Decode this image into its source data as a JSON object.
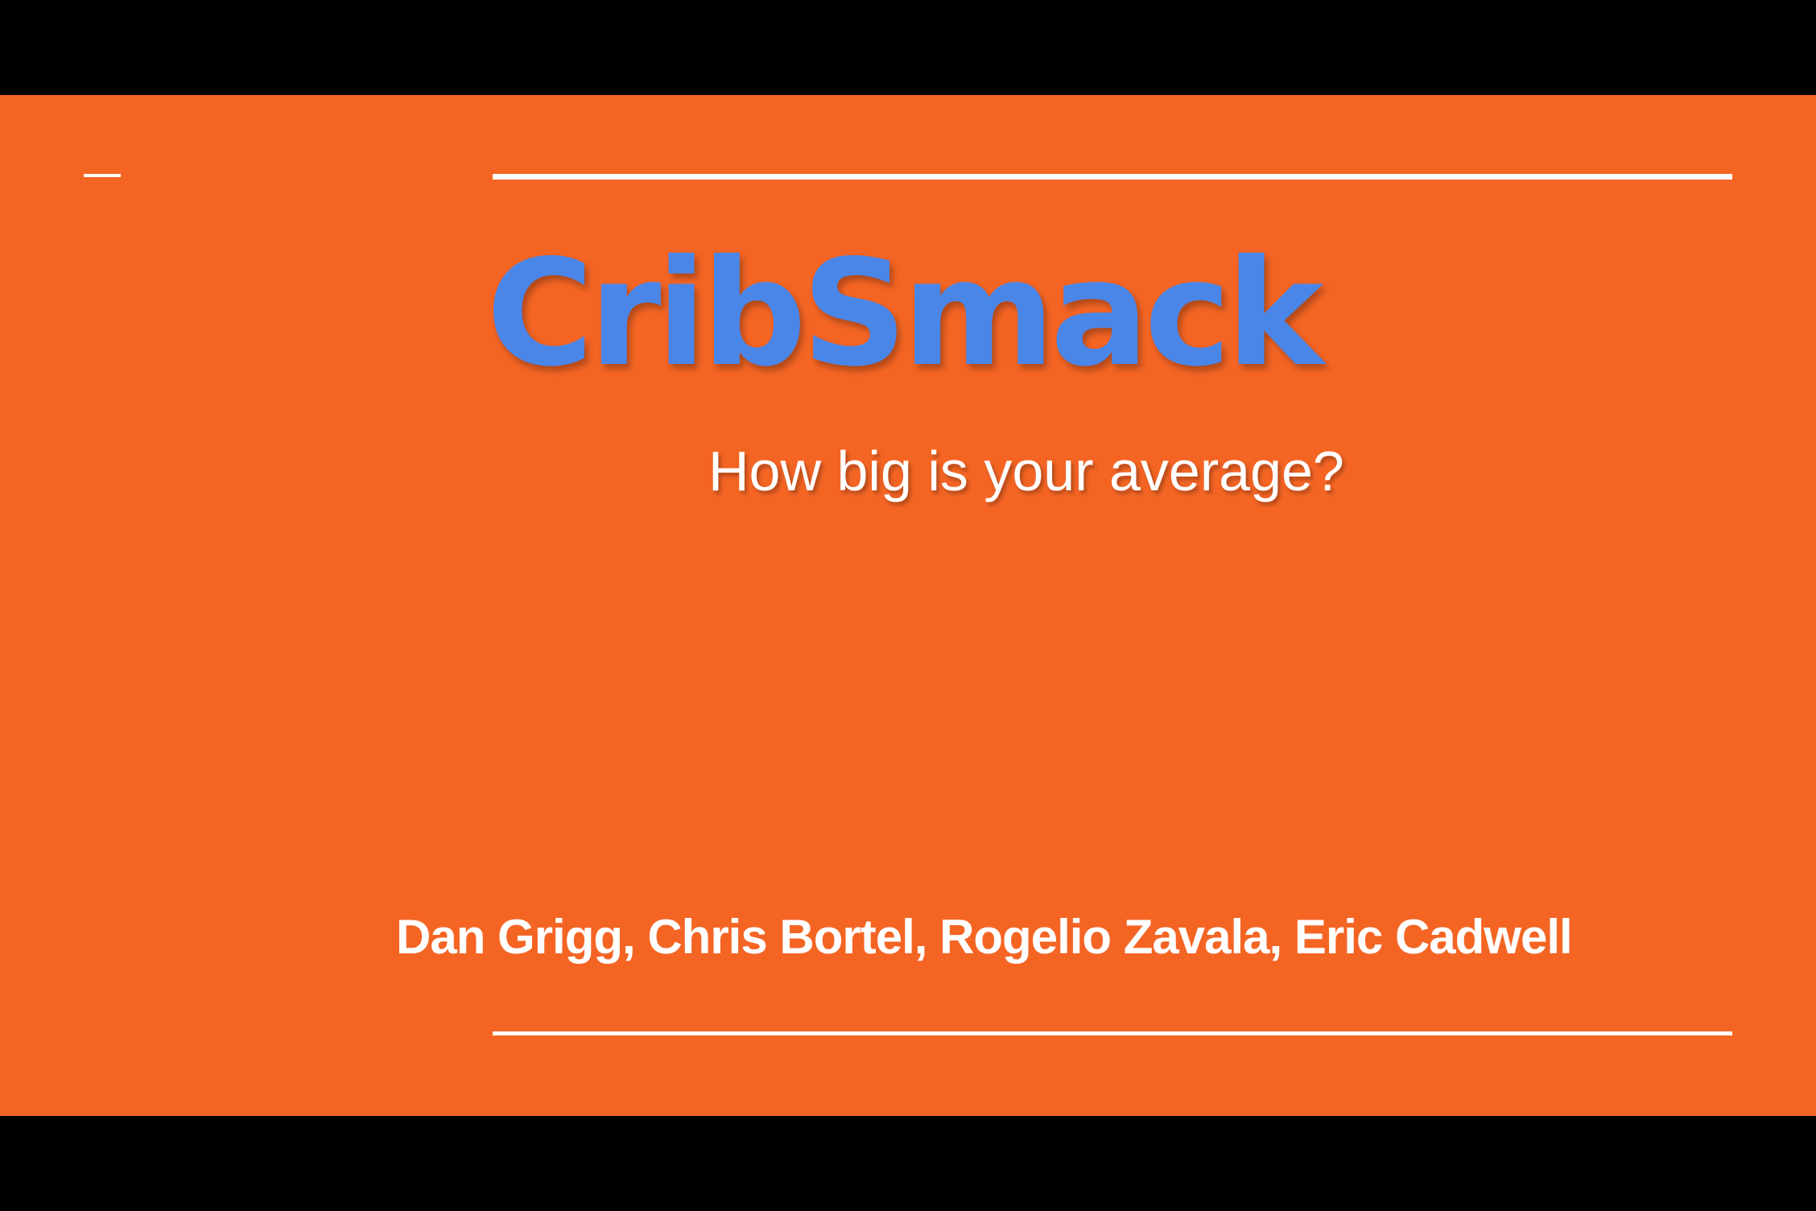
{
  "slide": {
    "title": "CribSmack",
    "subtitle": "How big is your average?",
    "authors": "Dan Grigg, Chris Bortel, Rogelio Zavala, Eric Cadwell"
  },
  "colors": {
    "background": "#f46524",
    "letterbox": "#000000",
    "title": "#4a86e8",
    "text": "#ffffff",
    "rules": "#ffffff"
  }
}
